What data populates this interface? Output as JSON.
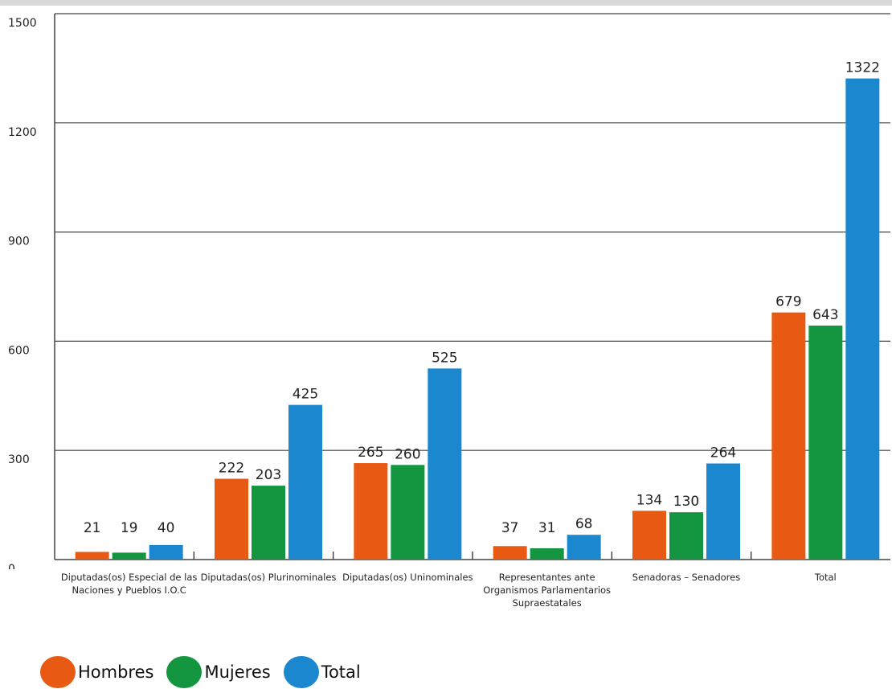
{
  "chart_data": {
    "type": "bar",
    "categories": [
      "Diputadas(os) Especial de las Naciones y Pueblos I.O.C",
      "Diputadas(os) Plurinominales",
      "Diputadas(os) Uninominales",
      "Representantes ante Organismos Parlamentarios Supraestatales",
      "Senadoras – Senadores",
      "Total"
    ],
    "series": [
      {
        "name": "Hombres",
        "color": "#e85a13",
        "values": [
          21,
          222,
          265,
          37,
          134,
          679
        ]
      },
      {
        "name": "Mujeres",
        "color": "#13963f",
        "values": [
          19,
          203,
          260,
          31,
          130,
          643
        ]
      },
      {
        "name": "Total",
        "color": "#1a87cf",
        "values": [
          40,
          425,
          525,
          68,
          264,
          1322
        ]
      }
    ],
    "yticks": [
      0,
      300,
      600,
      900,
      1200,
      1500
    ],
    "ylim": [
      0,
      1500
    ],
    "grid": true,
    "legend_position": "bottom-left",
    "title": "",
    "xlabel": "",
    "ylabel": ""
  }
}
